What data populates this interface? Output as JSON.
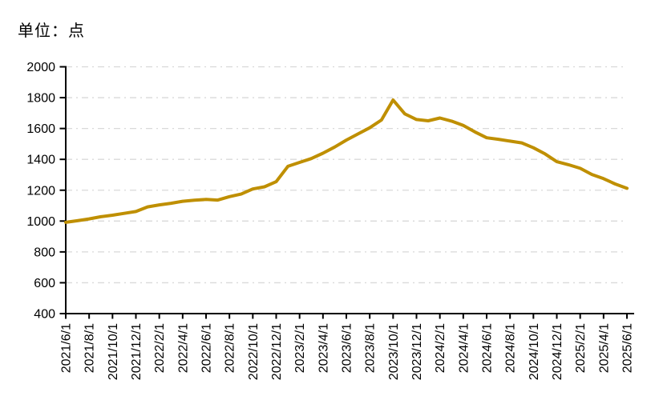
{
  "unit_label": "单位：点",
  "colors": {
    "line": "#BF8F00",
    "gridline": "#D9D9D9",
    "axis": "#000000",
    "text": "#000000",
    "background": "#FFFFFF"
  },
  "chart_data": {
    "type": "line",
    "title": "",
    "unit": "点",
    "legend": "none",
    "grid": "horizontal dash-dot",
    "x_tick_rotation_deg": 90,
    "ylim": [
      400,
      2000
    ],
    "y_ticks": [
      400,
      600,
      800,
      1000,
      1200,
      1400,
      1600,
      1800,
      2000
    ],
    "x_tick_labels": [
      "2021/6/1",
      "2021/8/1",
      "2021/10/1",
      "2021/12/1",
      "2022/2/1",
      "2022/4/1",
      "2022/6/1",
      "2022/8/1",
      "2022/10/1",
      "2022/12/1",
      "2023/2/1",
      "2023/4/1",
      "2023/6/1",
      "2023/8/1",
      "2023/10/1",
      "2023/12/1",
      "2024/2/1",
      "2024/4/1",
      "2024/6/1",
      "2024/8/1",
      "2024/10/1",
      "2024/12/1",
      "2025/2/1",
      "2025/4/1",
      "2025/6/1"
    ],
    "x": [
      "2021/6/1",
      "2021/7/1",
      "2021/8/1",
      "2021/9/1",
      "2021/10/1",
      "2021/11/1",
      "2021/12/1",
      "2022/1/1",
      "2022/2/1",
      "2022/3/1",
      "2022/4/1",
      "2022/5/1",
      "2022/6/1",
      "2022/7/1",
      "2022/8/1",
      "2022/9/1",
      "2022/10/1",
      "2022/11/1",
      "2022/12/1",
      "2023/1/1",
      "2023/2/1",
      "2023/3/1",
      "2023/4/1",
      "2023/5/1",
      "2023/6/1",
      "2023/7/1",
      "2023/8/1",
      "2023/9/1",
      "2023/10/1",
      "2023/11/1",
      "2023/12/1",
      "2024/1/1",
      "2024/2/1",
      "2024/3/1",
      "2024/4/1",
      "2024/5/1",
      "2024/6/1",
      "2024/7/1",
      "2024/8/1",
      "2024/9/1",
      "2024/10/1",
      "2024/11/1",
      "2024/12/1",
      "2025/1/1",
      "2025/2/1",
      "2025/3/1",
      "2025/4/1",
      "2025/5/1",
      "2025/6/1"
    ],
    "values": [
      992,
      1002,
      1014,
      1028,
      1038,
      1050,
      1062,
      1092,
      1105,
      1115,
      1128,
      1135,
      1140,
      1136,
      1158,
      1175,
      1208,
      1222,
      1255,
      1355,
      1380,
      1405,
      1440,
      1480,
      1525,
      1565,
      1605,
      1655,
      1785,
      1695,
      1658,
      1650,
      1668,
      1648,
      1620,
      1578,
      1540,
      1530,
      1518,
      1507,
      1475,
      1435,
      1385,
      1365,
      1342,
      1302,
      1275,
      1240,
      1212
    ]
  }
}
